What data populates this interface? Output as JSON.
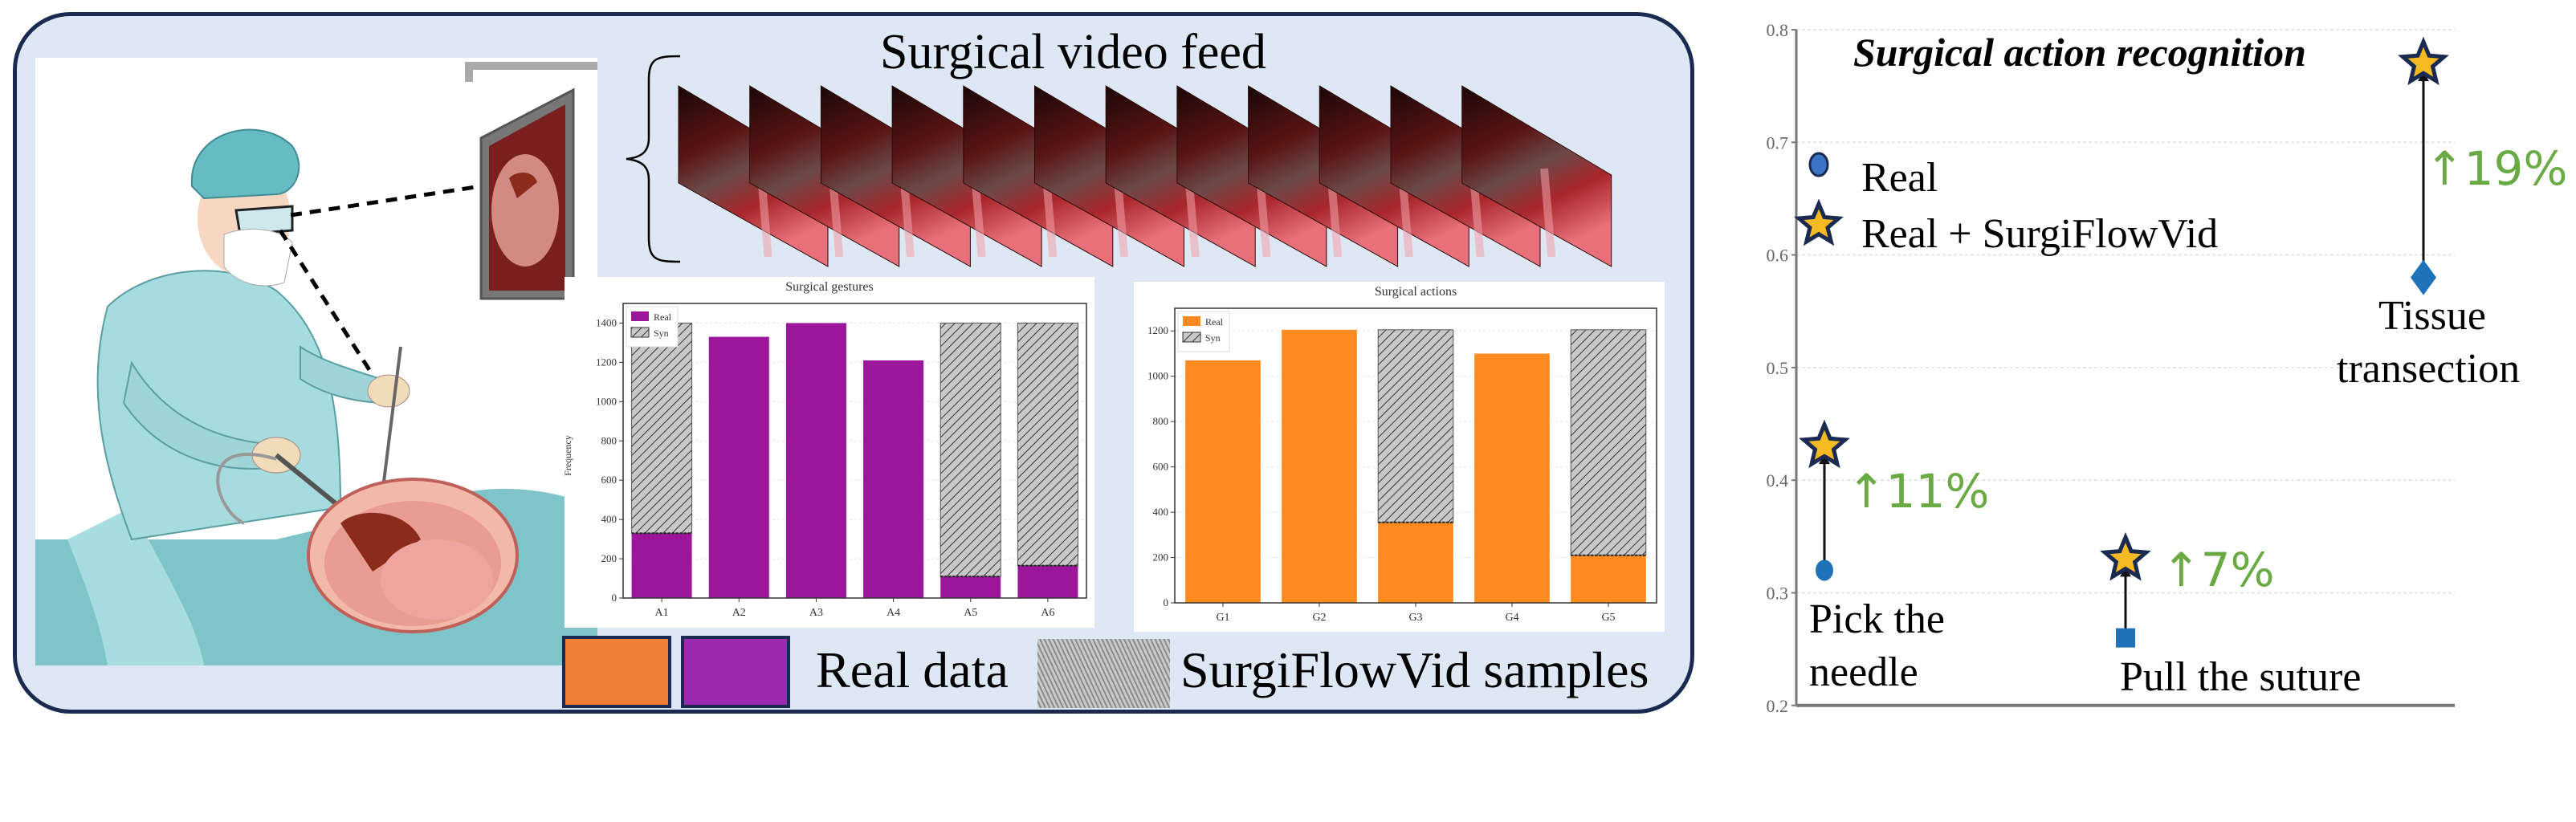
{
  "figure": {
    "video_feed_title": "Surgical video feed",
    "frame_count": 12,
    "legend": {
      "real_label": "Real data",
      "syn_label": "SurgiFlowVid samples",
      "colors": {
        "orange": "#ec7f33",
        "purple": "#9a2bb0",
        "border": "#1b2a50"
      }
    },
    "panel_colors": {
      "background": "#dde8f4",
      "border": "#1b2a50"
    }
  },
  "chart_data": [
    {
      "type": "bar",
      "stacked": true,
      "title": "Surgical gestures",
      "ylabel": "Frequency",
      "xlabel": "",
      "categories": [
        "A1",
        "A2",
        "A3",
        "A4",
        "A5",
        "A6"
      ],
      "series": [
        {
          "name": "Real",
          "values": [
            330,
            1330,
            1400,
            1210,
            110,
            165
          ],
          "color": "#9b169b"
        },
        {
          "name": "Syn",
          "values": [
            1070,
            0,
            0,
            0,
            1290,
            1235
          ],
          "pattern": "hatch"
        }
      ],
      "yticks": [
        "0",
        "200",
        "400",
        "600",
        "800",
        "1000",
        "1200",
        "1400"
      ],
      "ylim": [
        0,
        1500
      ],
      "legend": [
        "Real",
        "Syn"
      ],
      "legend_position": "top-left",
      "grid": true
    },
    {
      "type": "bar",
      "stacked": true,
      "title": "Surgical actions",
      "ylabel": "",
      "xlabel": "",
      "categories": [
        "G1",
        "G2",
        "G3",
        "G4",
        "G5"
      ],
      "series": [
        {
          "name": "Real",
          "values": [
            1070,
            1205,
            355,
            1100,
            210
          ],
          "color": "#ff8a1f"
        },
        {
          "name": "Syn",
          "values": [
            0,
            0,
            850,
            0,
            995
          ],
          "pattern": "hatch"
        }
      ],
      "yticks": [
        "0",
        "200",
        "400",
        "600",
        "800",
        "1000",
        "1200"
      ],
      "ylim": [
        0,
        1300
      ],
      "legend": [
        "Real",
        "Syn"
      ],
      "legend_position": "top-left",
      "grid": true
    },
    {
      "type": "scatter",
      "title": "Surgical action recognition",
      "ylim": [
        0.2,
        0.8
      ],
      "yticks": [
        "0.2",
        "0.3",
        "0.4",
        "0.5",
        "0.6",
        "0.7",
        "0.8"
      ],
      "grid": true,
      "legend": [
        "Real",
        "Real + SurgiFlowVid"
      ],
      "legend_position": "left",
      "tasks": [
        {
          "label_line1": "Pick the",
          "label_line2": "needle",
          "real": 0.32,
          "real_marker": "circle",
          "augmented": 0.43,
          "gain": "↑11%"
        },
        {
          "label_line1": "Pull the suture",
          "label_line2": "",
          "real": 0.26,
          "real_marker": "square",
          "augmented": 0.33,
          "gain": "↑7%"
        },
        {
          "label_line1": "Tissue",
          "label_line2": "transection",
          "real": 0.58,
          "real_marker": "diamond",
          "augmented": 0.77,
          "gain": "↑19%"
        }
      ],
      "colors": {
        "real": "#1f72b8",
        "star_fill": "#f5b921",
        "star_edge": "#1b2a50",
        "gain": "#6aaa45"
      }
    }
  ]
}
